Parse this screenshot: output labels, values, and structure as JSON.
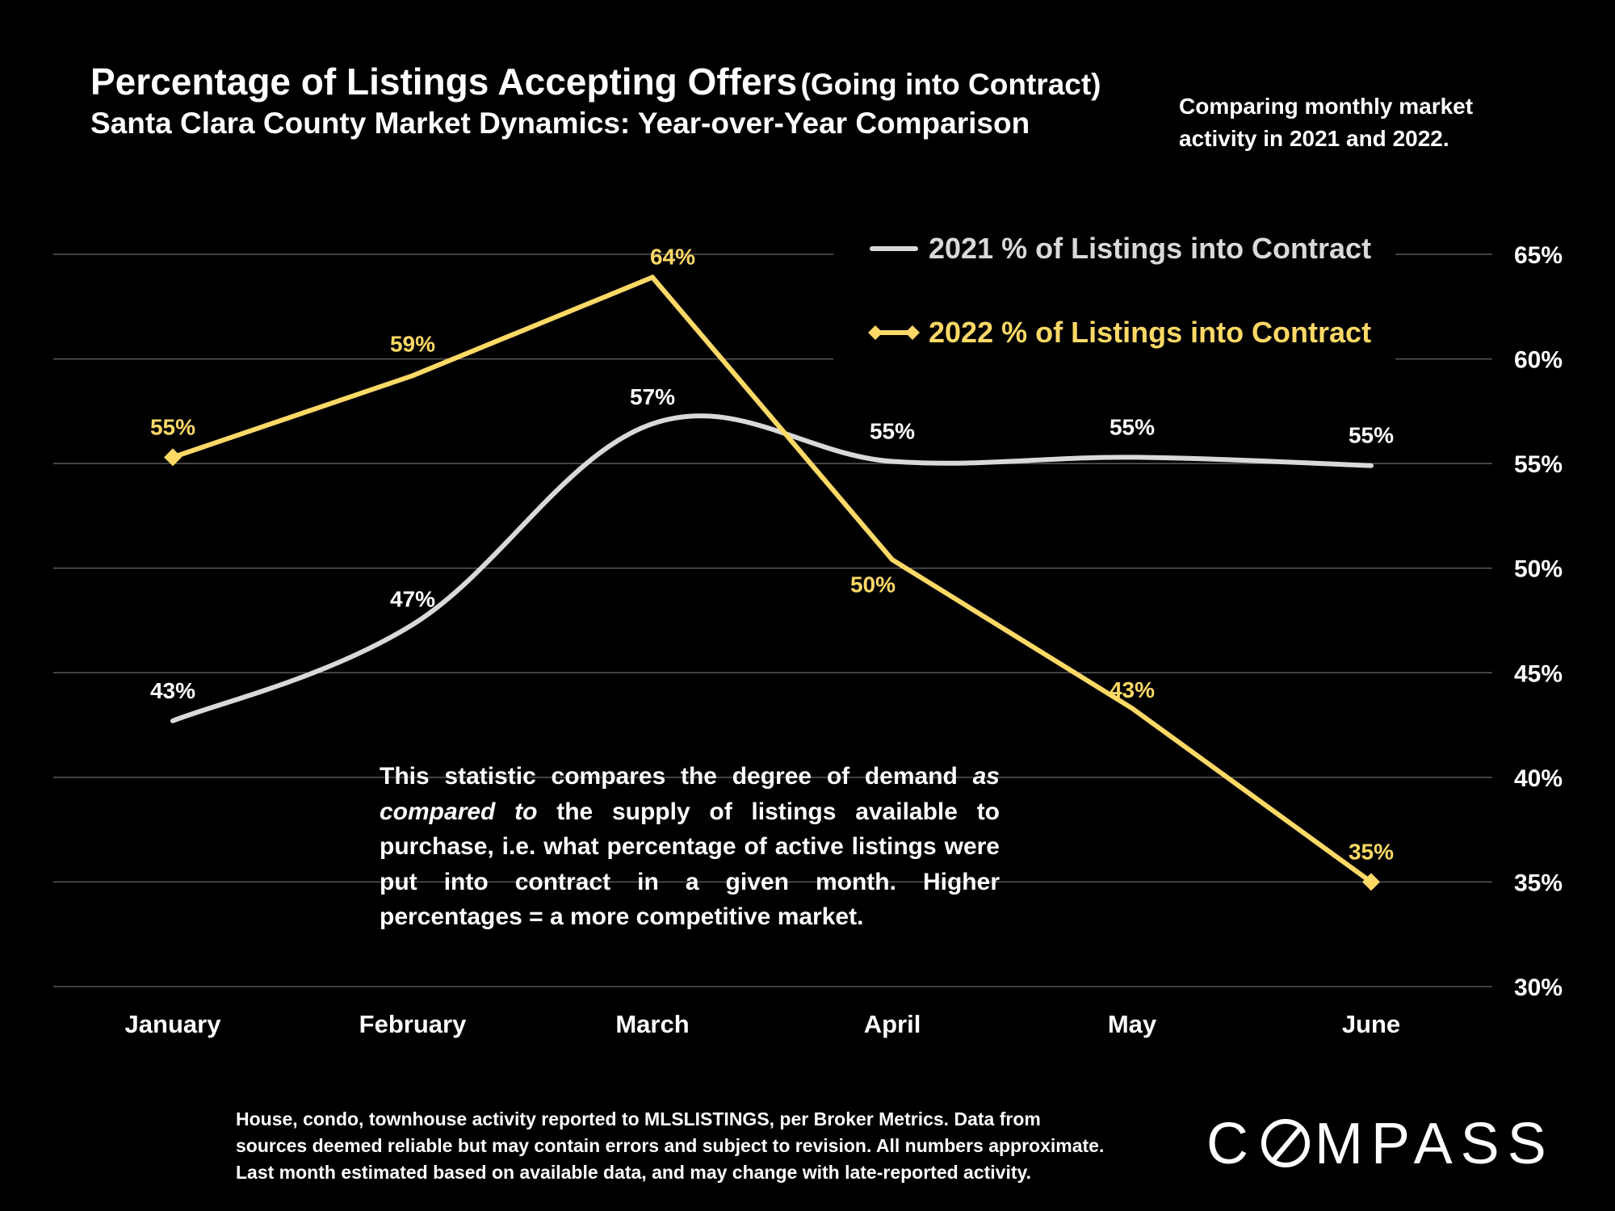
{
  "header": {
    "title": "Percentage of Listings Accepting Offers",
    "title_paren": "(Going into Contract)",
    "subtitle": "Santa Clara County Market Dynamics: Year-over-Year Comparison",
    "comparing": "Comparing monthly market activity in 2021 and 2022."
  },
  "note": {
    "part1": "This statistic compares the degree of demand ",
    "italic": "as compared to",
    "part2": " the supply of listings available to purchase, i.e. what percentage of active listings were put into contract in a given month. Higher percentages = a more competitive market."
  },
  "footnote": {
    "line1": "House, condo, townhouse activity reported to MLSLISTINGS, per Broker Metrics. Data from",
    "line2": "sources deemed reliable but may contain errors and subject to revision. All numbers approximate.",
    "line3": "Last month estimated based on available data, and may change with late-reported activity."
  },
  "brand": {
    "left": "C",
    "right": "MPASS"
  },
  "chart_data": {
    "type": "line",
    "categories": [
      "January",
      "February",
      "March",
      "April",
      "May",
      "June"
    ],
    "ylim": [
      30,
      65
    ],
    "yticks": [
      30,
      35,
      40,
      45,
      50,
      55,
      60,
      65
    ],
    "ytick_labels": [
      "30%",
      "35%",
      "40%",
      "45%",
      "50%",
      "55%",
      "60%",
      "65%"
    ],
    "y_axis_side": "right",
    "grid": true,
    "legend_position": "top-right",
    "series": [
      {
        "name": "2021 % of Listings into Contract",
        "values": [
          42.7,
          47.3,
          56.9,
          55.1,
          55.3,
          54.9
        ],
        "labels": [
          "43%",
          "47%",
          "57%",
          "55%",
          "55%",
          "55%"
        ],
        "color": "#d9d9d9",
        "smooth": true,
        "marker": "none"
      },
      {
        "name": "2022 % of Listings into Contract",
        "values": [
          55.3,
          59.2,
          63.9,
          50.4,
          43.3,
          35.0
        ],
        "labels": [
          "55%",
          "59%",
          "64%",
          "50%",
          "43%",
          "35%"
        ],
        "color": "#ffd966",
        "smooth": false,
        "marker": "diamond"
      }
    ]
  }
}
